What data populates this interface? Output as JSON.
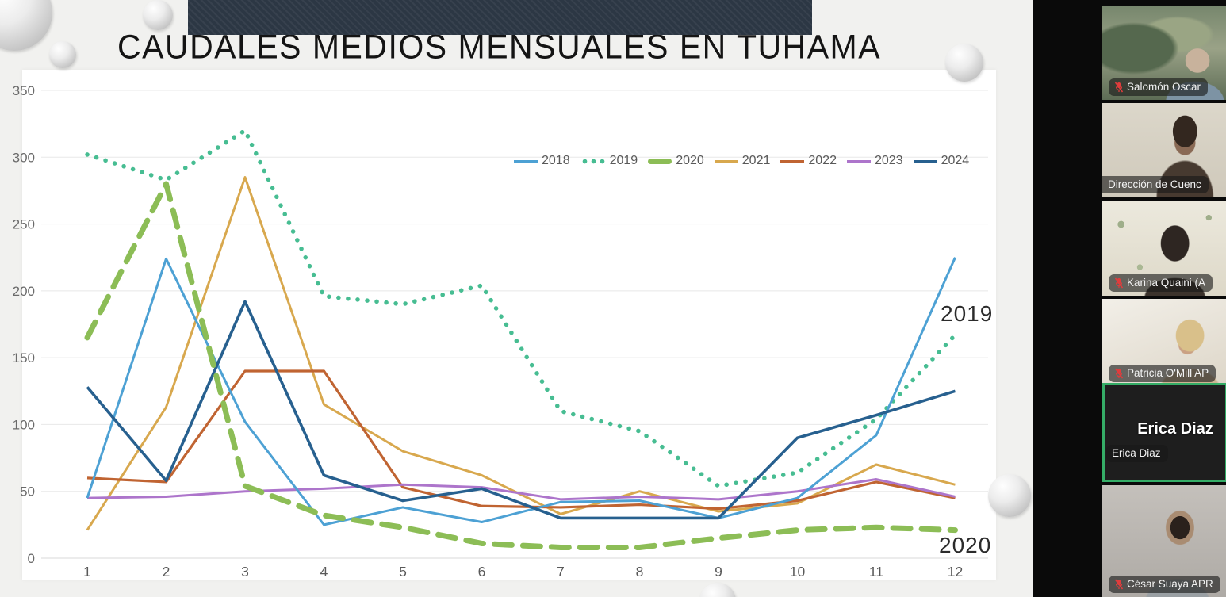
{
  "slide": {
    "title": "CAUDALES MEDIOS MENSUALES EN TUHAMA"
  },
  "chart_data": {
    "type": "line",
    "title": "CAUDALES MEDIOS MENSUALES EN TUHAMA",
    "x": [
      1,
      2,
      3,
      4,
      5,
      6,
      7,
      8,
      9,
      10,
      11,
      12
    ],
    "xlabel": "",
    "ylabel": "",
    "ylim": [
      0,
      350
    ],
    "yticks": [
      0,
      50,
      100,
      150,
      200,
      250,
      300,
      350
    ],
    "grid": "horizontal",
    "legend_position": "top-right-inset",
    "series": [
      {
        "name": "2018",
        "color": "#4da1d4",
        "style": "solid",
        "width": 3,
        "values": [
          45,
          224,
          102,
          25,
          38,
          27,
          42,
          43,
          30,
          45,
          92,
          225
        ]
      },
      {
        "name": "2019",
        "color": "#47bd92",
        "style": "dotted",
        "width": 5.5,
        "values": [
          302,
          283,
          320,
          196,
          190,
          204,
          110,
          95,
          54,
          64,
          104,
          167
        ]
      },
      {
        "name": "2020",
        "color": "#8cbd56",
        "style": "dashed-thick",
        "width": 7,
        "values": [
          165,
          280,
          54,
          32,
          23,
          11,
          8,
          8,
          15,
          21,
          23,
          21
        ]
      },
      {
        "name": "2021",
        "color": "#d8a84e",
        "style": "solid",
        "width": 3,
        "values": [
          21,
          113,
          285,
          115,
          80,
          62,
          33,
          50,
          35,
          41,
          70,
          55
        ]
      },
      {
        "name": "2022",
        "color": "#c06432",
        "style": "solid",
        "width": 3.2,
        "values": [
          60,
          57,
          140,
          140,
          53,
          39,
          38,
          40,
          37,
          43,
          57,
          45
        ]
      },
      {
        "name": "2023",
        "color": "#ad75cb",
        "style": "solid",
        "width": 3,
        "values": [
          45,
          46,
          50,
          52,
          55,
          53,
          44,
          46,
          44,
          50,
          59,
          46
        ]
      },
      {
        "name": "2024",
        "color": "#27608f",
        "style": "solid",
        "width": 3.6,
        "values": [
          128,
          58,
          192,
          62,
          43,
          52,
          30,
          30,
          30,
          90,
          107,
          125
        ]
      }
    ],
    "annotations": [
      {
        "text": "2019",
        "position": "right-upper"
      },
      {
        "text": "2020",
        "position": "right-lower"
      }
    ]
  },
  "participants_panel": {
    "active_speaker": "Erica Diaz",
    "tiles": [
      {
        "name": "Salomón Oscar",
        "muted": true,
        "scene": "outdoor",
        "active": false
      },
      {
        "name": "Dirección de Cuenc",
        "muted": false,
        "scene": "beige",
        "active": false
      },
      {
        "name": "Karina Quaini (A",
        "muted": true,
        "scene": "floral",
        "active": false
      },
      {
        "name": "Patricia O'Mill AP",
        "muted": true,
        "scene": "bright",
        "active": false
      },
      {
        "name": "Erica Diaz",
        "muted": false,
        "scene": "namecard",
        "active": true,
        "center_name": "Erica Diaz"
      },
      {
        "name": "César Suaya APR",
        "muted": true,
        "scene": "gray",
        "active": false
      }
    ]
  }
}
